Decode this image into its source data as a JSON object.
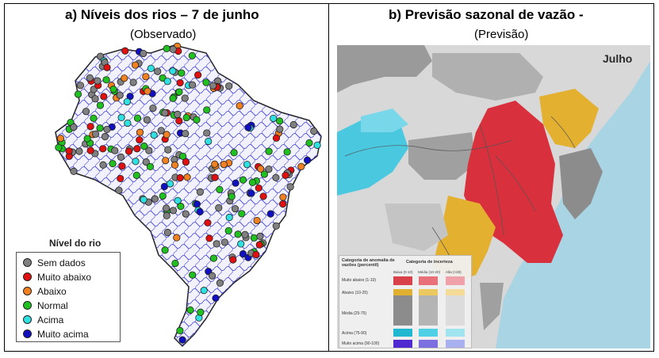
{
  "panel_a": {
    "title": "a)   Níveis dos rios – 7 de junho",
    "subtitle": "(Observado)",
    "legend": {
      "title": "Nível do rio",
      "items": [
        {
          "label": "Sem dados",
          "color": "#808080"
        },
        {
          "label": "Muito abaixo",
          "color": "#e01010"
        },
        {
          "label": "Abaixo",
          "color": "#f08020"
        },
        {
          "label": "Normal",
          "color": "#20c020"
        },
        {
          "label": "Acima",
          "color": "#30e0e0"
        },
        {
          "label": "Muito acima",
          "color": "#1010c0"
        }
      ]
    }
  },
  "panel_b": {
    "title": "b)   Previsão sazonal de vazão -",
    "subtitle": "(Previsão)",
    "month_label": "Julho",
    "legend": {
      "anomaly_header": "Categoria de anomalia de vazões (percentil)",
      "uncertainty_header": "Categoria de incerteza",
      "uncertainty_levels": [
        "Baixa (0-10)",
        "Média (10-20)",
        "Alta (>20)"
      ],
      "rows": [
        {
          "label": "Muito abaixo (1-10)",
          "colors": [
            "#d8404a",
            "#e87078",
            "#f0a0a8"
          ]
        },
        {
          "label": "Abaixo (10-25)",
          "colors": [
            "#e0b030",
            "#ecc860",
            "#f4dc98"
          ]
        },
        {
          "label": "Média (25-75)",
          "colors": [
            "#8c8c8c",
            "#b4b4b4",
            "#dcdcdc"
          ]
        },
        {
          "label": "Acima (75-90)",
          "colors": [
            "#20b8d0",
            "#50d0e4",
            "#a0e4f0"
          ]
        },
        {
          "label": "Muito acima (90-100)",
          "colors": [
            "#5028d0",
            "#7c70e0",
            "#a8b0f0"
          ]
        }
      ]
    }
  }
}
